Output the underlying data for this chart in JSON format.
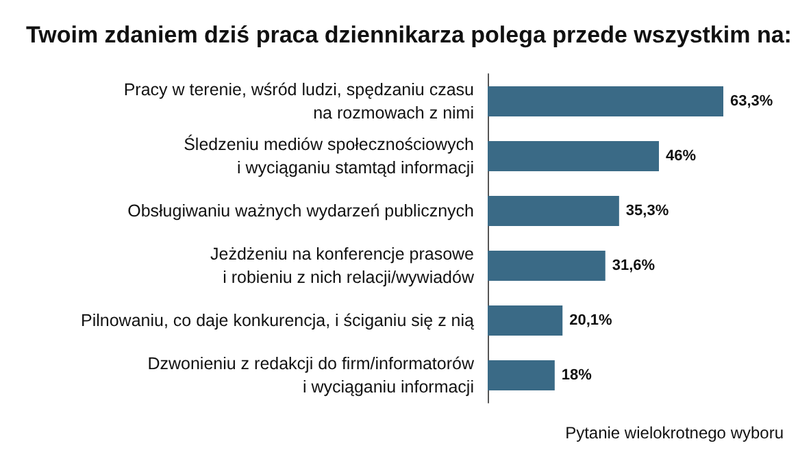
{
  "chart_data": {
    "type": "bar",
    "orientation": "horizontal",
    "title": "Twoim zdaniem dziś praca dziennikarza polega przede wszystkim na:",
    "categories": [
      "Pracy w terenie, wśród ludzi, spędzaniu czasu\nna rozmowach z nimi",
      "Śledzeniu mediów społecznościowych\ni wyciąganiu stamtąd informacji",
      "Obsługiwaniu ważnych wydarzeń publicznych",
      "Jeżdżeniu na konferencje prasowe\ni robieniu z nich relacji/wywiadów",
      "Pilnowaniu, co daje konkurencja, i ściganiu się z nią",
      "Dzwonieniu z redakcji do firm/informatorów\ni wyciąganiu informacji"
    ],
    "values": [
      63.3,
      46,
      35.3,
      31.6,
      20.1,
      18
    ],
    "value_labels": [
      "63,3%",
      "46%",
      "35,3%",
      "31,6%",
      "20,1%",
      "18%"
    ],
    "color": "#3a6a86",
    "annotations": [
      "Pytanie wielokrotnego wyboru"
    ]
  }
}
